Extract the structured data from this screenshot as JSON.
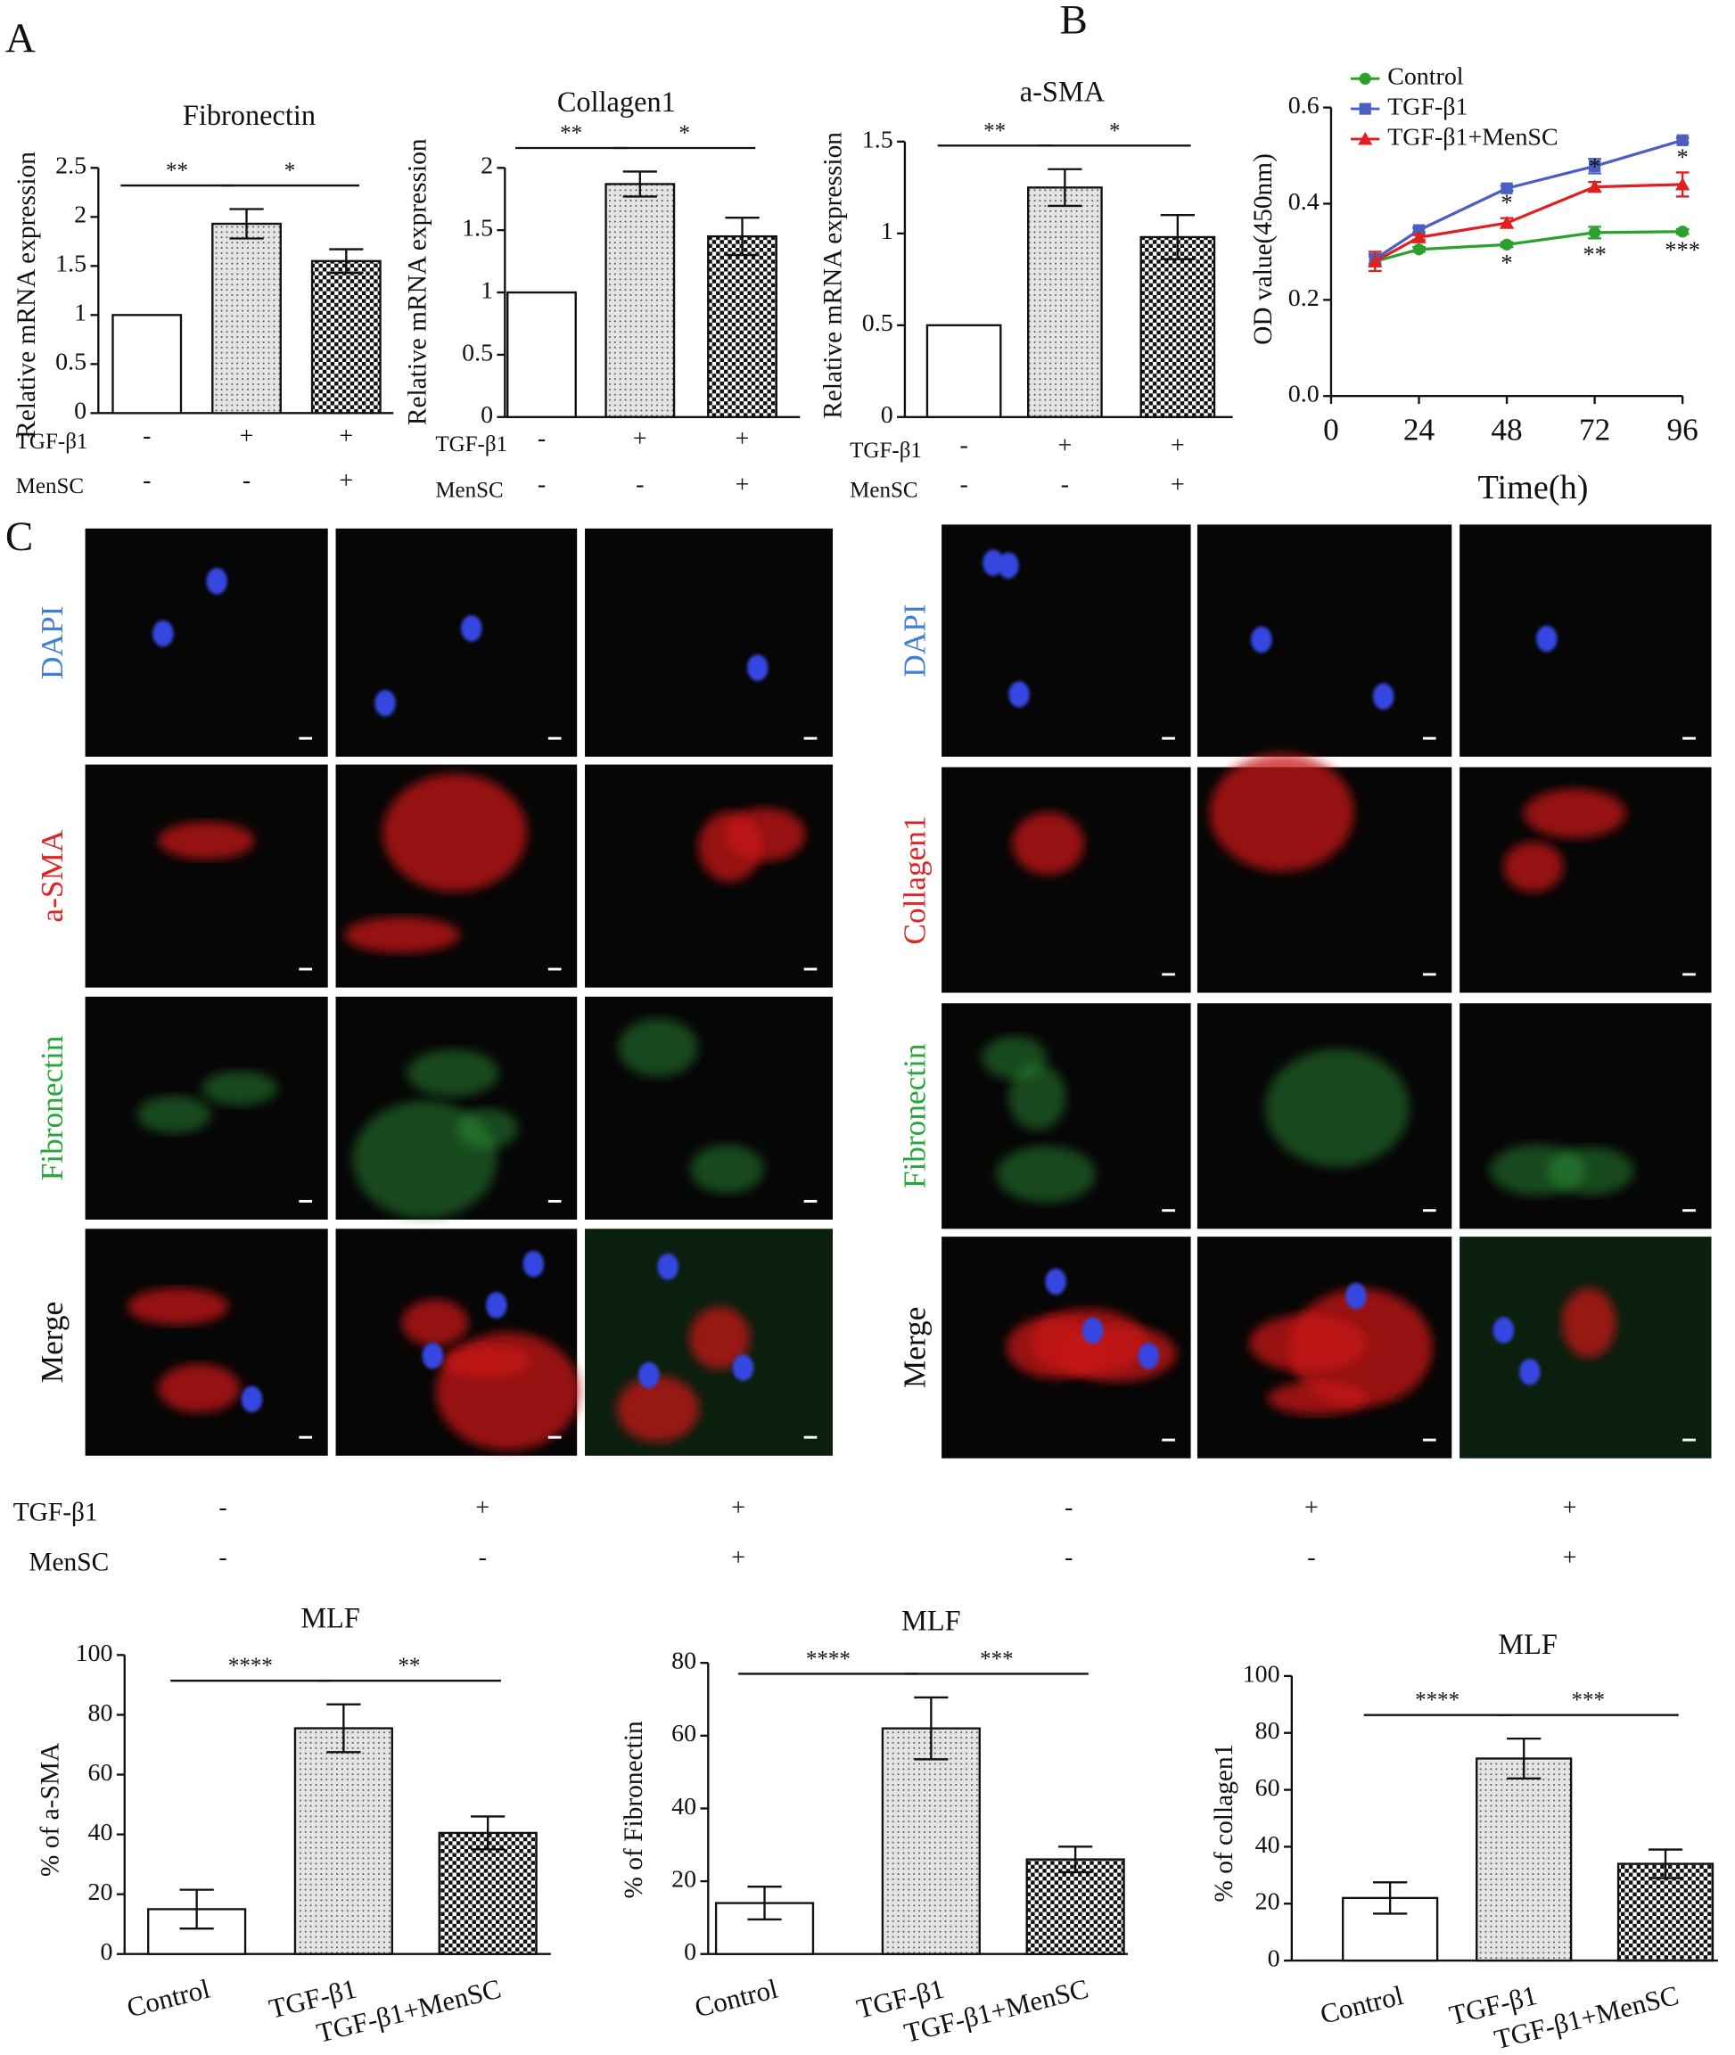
{
  "panel_labels": [
    "A",
    "B",
    "C"
  ],
  "chart_data": [
    {
      "type": "bar",
      "title": "Fibronectin",
      "y_label": "Relative  mRNA expression",
      "values": [
        1,
        1.93,
        1.55
      ],
      "errors": [
        0,
        0.15,
        0.12
      ],
      "ylim": [
        0,
        2.5
      ],
      "yticks": [
        0,
        0.5,
        1,
        1.5,
        2,
        2.5
      ],
      "significance": [
        "**",
        "*"
      ],
      "treatments": [
        {
          "name": "TGF-β1",
          "signs": [
            "-",
            "+",
            "+"
          ]
        },
        {
          "name": "MenSC",
          "signs": [
            "-",
            "-",
            "+"
          ]
        }
      ]
    },
    {
      "type": "bar",
      "title": "Collagen1",
      "y_label": "Relative  mRNA expression",
      "values": [
        1,
        1.87,
        1.45
      ],
      "errors": [
        0,
        0.1,
        0.15
      ],
      "ylim": [
        0,
        2
      ],
      "yticks": [
        0,
        0.5,
        1,
        1.5,
        2
      ],
      "significance": [
        "**",
        "*"
      ],
      "treatments": [
        {
          "name": "TGF-β1",
          "signs": [
            "-",
            "+",
            "+"
          ]
        },
        {
          "name": "MenSC",
          "signs": [
            "-",
            "-",
            "+"
          ]
        }
      ]
    },
    {
      "type": "bar",
      "title": "a-SMA",
      "y_label": "Relative  mRNA expression",
      "values": [
        0.5,
        1.25,
        0.98
      ],
      "errors": [
        0,
        0.1,
        0.12
      ],
      "ylim": [
        0,
        1.5
      ],
      "yticks": [
        0,
        0.5,
        1,
        1.5
      ],
      "significance": [
        "**",
        "*"
      ],
      "treatments": [
        {
          "name": "TGF-β1",
          "signs": [
            "-",
            "+",
            "+"
          ]
        },
        {
          "name": "MenSC",
          "signs": [
            "-",
            "-",
            "+"
          ]
        }
      ]
    },
    {
      "type": "line",
      "x_label": "Time(h)",
      "y_label": "OD value(450nm)",
      "x": [
        12,
        24,
        48,
        72,
        96
      ],
      "xlim": [
        0,
        96
      ],
      "xticks": [
        0,
        24,
        48,
        72,
        96
      ],
      "ylim": [
        0,
        0.6
      ],
      "yticks": [
        {
          "value": 0,
          "label": "0.0"
        },
        0.2,
        0.4,
        0.6
      ],
      "series": [
        {
          "name": "Control",
          "color": "#2ca02c",
          "values": [
            0.28,
            0.305,
            0.315,
            0.34,
            0.342
          ],
          "errors": [
            0.01,
            0.005,
            0.005,
            0.012,
            0.005
          ]
        },
        {
          "name": "TGF-β1",
          "color": "#4a5fc1",
          "values": [
            0.285,
            0.345,
            0.432,
            0.478,
            0.532
          ],
          "errors": [
            0.01,
            0.005,
            0.005,
            0.015,
            0.005
          ]
        },
        {
          "name": "TGF-β1+MenSC",
          "color": "#e02020",
          "values": [
            0.28,
            0.33,
            0.36,
            0.435,
            0.44
          ],
          "errors": [
            0.02,
            0.005,
            0.01,
            0.01,
            0.025
          ]
        }
      ],
      "significance": [
        {
          "x": 48,
          "above": "*",
          "below": "*"
        },
        {
          "x": 72,
          "above": "*",
          "below": "**"
        },
        {
          "x": 96,
          "above": "*",
          "below": "***"
        }
      ]
    },
    {
      "type": "bar",
      "title": "MLF",
      "y_label": "% of a-SMA",
      "categories": [
        "Control",
        "TGF-β1",
        "TGF-β1+MenSC"
      ],
      "values": [
        15,
        75.5,
        40.5
      ],
      "errors": [
        6.5,
        8,
        5.5
      ],
      "ylim": [
        0,
        100
      ],
      "yticks": [
        0,
        20,
        40,
        60,
        80,
        100
      ],
      "significance": [
        "****",
        "**"
      ]
    },
    {
      "type": "bar",
      "title": "MLF",
      "y_label": "% of Fibronectin",
      "categories": [
        "Control",
        "TGF-β1",
        "TGF-β1+MenSC"
      ],
      "values": [
        14,
        62,
        26
      ],
      "errors": [
        4.5,
        8.5,
        3.5
      ],
      "ylim": [
        0,
        80
      ],
      "yticks": [
        0,
        20,
        40,
        60,
        80
      ],
      "significance": [
        "****",
        "***"
      ]
    },
    {
      "type": "bar",
      "title": "MLF",
      "y_label": "% of collagen1",
      "categories": [
        "Control",
        "TGF-β1",
        "TGF-β1+MenSC"
      ],
      "values": [
        22,
        71,
        34
      ],
      "errors": [
        5.5,
        7,
        5
      ],
      "ylim": [
        0,
        100
      ],
      "yticks": [
        0,
        20,
        40,
        60,
        80,
        100
      ],
      "significance": [
        "****",
        "***"
      ]
    }
  ],
  "panel_c": {
    "left_rows": [
      "DAPI",
      "a-SMA",
      "Fibronectin",
      "Merge"
    ],
    "right_rows": [
      "DAPI",
      "Collagen1",
      "Fibronectin",
      "Merge"
    ],
    "treatments": [
      {
        "name": "TGF-β1",
        "signs": [
          "-",
          "+",
          "+",
          "-",
          "+",
          "+"
        ]
      },
      {
        "name": "MenSC",
        "signs": [
          "-",
          "-",
          "+",
          "-",
          "-",
          "+"
        ]
      }
    ]
  }
}
